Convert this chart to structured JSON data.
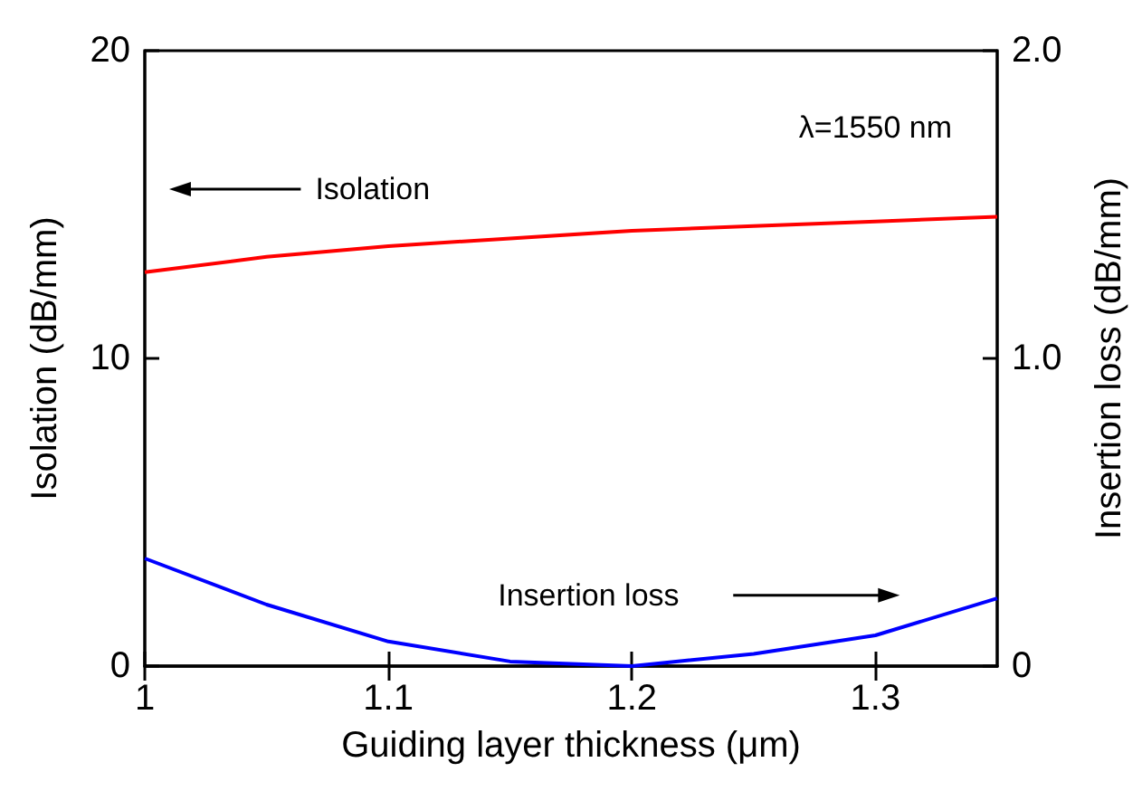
{
  "chart_data": {
    "type": "line",
    "xlabel": "Guiding layer thickness (μm)",
    "ylabel": "Isolation (dB/mm)",
    "y2label": "Insertion loss (dB/mm)",
    "x": [
      1,
      1.05,
      1.1,
      1.15,
      1.2,
      1.25,
      1.3,
      1.35
    ],
    "series": [
      {
        "color": "#ff0000",
        "values": [
          12.8,
          13.3,
          13.65,
          13.9,
          14.15,
          14.3,
          14.45,
          14.6
        ]
      },
      {
        "color": "#0000ff",
        "axis": "y2",
        "values": [
          0.35,
          0.2,
          0.08,
          0.015,
          0.0,
          0.04,
          0.1,
          0.22
        ]
      }
    ],
    "xlim": [
      1,
      1.35
    ],
    "xticks": [
      1,
      1.1,
      1.2,
      1.3
    ],
    "ylim": [
      0,
      20
    ],
    "yticks": [
      0,
      10,
      20
    ],
    "y2lim": [
      0,
      2
    ],
    "y2ticks": [
      0,
      {
        "value": 1,
        "label": "1.0"
      },
      {
        "value": 2,
        "label": "2.0"
      }
    ],
    "grid": false,
    "marker": "none",
    "line_style": "solid",
    "annotations": [
      "λ=1550 nm",
      "Isolation",
      "Insertion loss"
    ]
  }
}
